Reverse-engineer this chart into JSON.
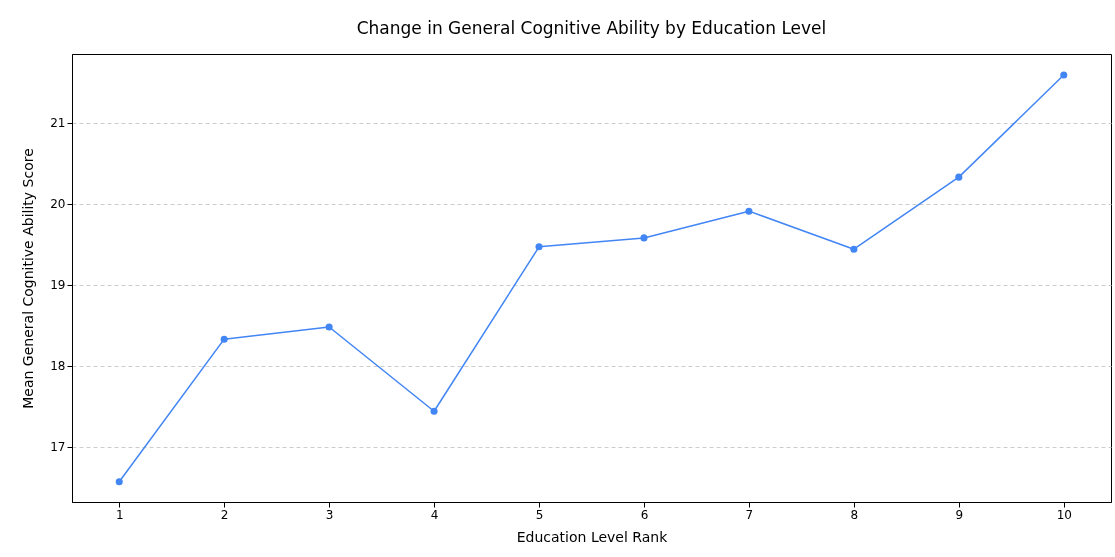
{
  "chart_data": {
    "type": "line",
    "title": "Change in General Cognitive Ability by Education Level",
    "xlabel": "Education Level Rank",
    "ylabel": "Mean General Cognitive Ability Score",
    "x": [
      1,
      2,
      3,
      4,
      5,
      6,
      7,
      8,
      9,
      10
    ],
    "series": [
      {
        "color": "#4285f4",
        "values": [
          16.57,
          18.33,
          18.48,
          17.44,
          19.47,
          19.58,
          19.91,
          19.44,
          20.33,
          21.59
        ]
      }
    ],
    "xlim": [
      0.55,
      10.45
    ],
    "ylim": [
      16.32,
      21.85
    ],
    "xticks": [
      1,
      2,
      3,
      4,
      5,
      6,
      7,
      8,
      9,
      10
    ],
    "yticks": [
      17,
      18,
      19,
      20,
      21
    ],
    "grid": "y",
    "marker": "circle",
    "line_style": "solid"
  }
}
